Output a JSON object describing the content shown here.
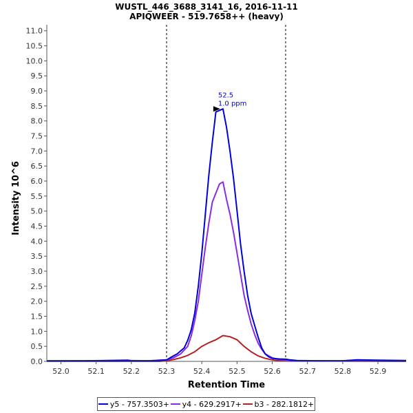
{
  "chart_data": {
    "type": "line",
    "title": "WUSTL_446_3688_3141_16, 2016-11-11",
    "subtitle": "APIQWEER - 519.7658++ (heavy)",
    "xlabel": "Retention Time",
    "ylabel": "Intensity 10^6",
    "xlim": [
      51.96,
      52.98
    ],
    "ylim": [
      0,
      11.2
    ],
    "x_ticks": [
      "52.0",
      "52.1",
      "52.2",
      "52.3",
      "52.4",
      "52.5",
      "52.6",
      "52.7",
      "52.8",
      "52.9"
    ],
    "x_tick_values": [
      52.0,
      52.1,
      52.2,
      52.3,
      52.4,
      52.5,
      52.6,
      52.7,
      52.8,
      52.9
    ],
    "y_ticks": [
      "0.0",
      "0.5",
      "1.0",
      "1.5",
      "2.0",
      "2.5",
      "3.0",
      "3.5",
      "4.0",
      "4.5",
      "5.0",
      "5.5",
      "6.0",
      "6.5",
      "7.0",
      "7.5",
      "8.0",
      "8.5",
      "9.0",
      "9.5",
      "10.0",
      "10.5",
      "11.0"
    ],
    "y_tick_values": [
      0,
      0.5,
      1,
      1.5,
      2,
      2.5,
      3,
      3.5,
      4,
      4.5,
      5,
      5.5,
      6,
      6.5,
      7,
      7.5,
      8,
      8.5,
      9,
      9.5,
      10,
      10.5,
      11
    ],
    "boundaries": [
      52.3,
      52.638
    ],
    "annotation": {
      "x": 52.46,
      "y": 8.4,
      "line1": "52.5",
      "line2": "1.0 ppm"
    },
    "series": [
      {
        "name": "y5 - 757.3503+",
        "color": "#0000dd",
        "x": [
          51.96,
          52.07,
          52.13,
          52.19,
          52.2,
          52.25,
          52.27,
          52.3,
          52.31,
          52.33,
          52.35,
          52.36,
          52.37,
          52.38,
          52.39,
          52.4,
          52.41,
          52.42,
          52.43,
          52.44,
          52.45,
          52.46,
          52.47,
          52.48,
          52.49,
          52.5,
          52.51,
          52.52,
          52.53,
          52.54,
          52.55,
          52.56,
          52.57,
          52.58,
          52.59,
          52.6,
          52.62,
          52.64,
          52.65,
          52.67,
          52.72,
          52.8,
          52.84,
          52.9,
          52.98
        ],
        "values": [
          0.02,
          0.02,
          0.03,
          0.04,
          0.02,
          0.02,
          0.03,
          0.05,
          0.12,
          0.25,
          0.45,
          0.7,
          1.05,
          1.6,
          2.5,
          3.6,
          4.9,
          6.2,
          7.3,
          8.3,
          8.35,
          8.4,
          7.8,
          7.0,
          6.1,
          5.0,
          3.9,
          3.0,
          2.2,
          1.6,
          1.2,
          0.8,
          0.45,
          0.25,
          0.15,
          0.1,
          0.08,
          0.07,
          0.05,
          0.03,
          0.02,
          0.02,
          0.05,
          0.04,
          0.03
        ]
      },
      {
        "name": "y4 - 629.2917+",
        "color": "#8a2be2",
        "x": [
          51.96,
          52.19,
          52.25,
          52.3,
          52.32,
          52.34,
          52.36,
          52.37,
          52.38,
          52.39,
          52.4,
          52.41,
          52.42,
          52.43,
          52.44,
          52.45,
          52.46,
          52.47,
          52.48,
          52.49,
          52.5,
          52.51,
          52.52,
          52.53,
          52.54,
          52.55,
          52.56,
          52.57,
          52.58,
          52.6,
          52.62,
          52.65,
          52.7,
          52.98
        ],
        "values": [
          0.01,
          0.03,
          0.02,
          0.05,
          0.12,
          0.25,
          0.5,
          0.85,
          1.35,
          2.0,
          2.9,
          3.8,
          4.6,
          5.3,
          5.6,
          5.9,
          5.97,
          5.4,
          4.9,
          4.3,
          3.6,
          2.9,
          2.2,
          1.7,
          1.25,
          0.9,
          0.6,
          0.4,
          0.25,
          0.12,
          0.06,
          0.03,
          0.02,
          0.01
        ]
      },
      {
        "name": "b3 - 282.1812+",
        "color": "#b22222",
        "x": [
          51.96,
          52.28,
          52.3,
          52.32,
          52.34,
          52.36,
          52.38,
          52.4,
          52.42,
          52.44,
          52.46,
          52.48,
          52.5,
          52.52,
          52.54,
          52.56,
          52.58,
          52.6,
          52.62,
          52.65,
          52.98
        ],
        "values": [
          0.0,
          0.0,
          0.02,
          0.06,
          0.12,
          0.2,
          0.32,
          0.5,
          0.62,
          0.72,
          0.86,
          0.82,
          0.72,
          0.5,
          0.32,
          0.18,
          0.1,
          0.05,
          0.02,
          0.01,
          0.0
        ]
      }
    ]
  }
}
